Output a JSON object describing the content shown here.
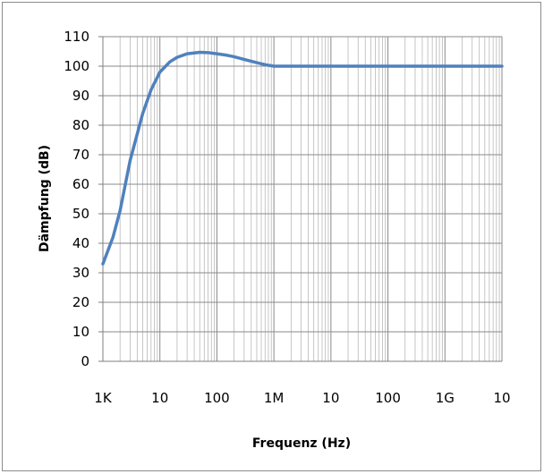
{
  "chart_data": {
    "type": "line",
    "title": "",
    "xlabel": "Frequenz (Hz)",
    "ylabel": "Dämpfung (dB)",
    "x_scale": "log",
    "xlim": [
      1000,
      10000000000
    ],
    "ylim": [
      0,
      110
    ],
    "y_ticks": [
      0,
      10,
      20,
      30,
      40,
      50,
      60,
      70,
      80,
      90,
      100,
      110
    ],
    "x_tick_labels": [
      {
        "value": 1000,
        "label": "1K"
      },
      {
        "value": 10000,
        "label": "10"
      },
      {
        "value": 100000,
        "label": "100"
      },
      {
        "value": 1000000,
        "label": "1M"
      },
      {
        "value": 10000000,
        "label": "10"
      },
      {
        "value": 100000000,
        "label": "100"
      },
      {
        "value": 1000000000,
        "label": "1G"
      },
      {
        "value": 10000000000,
        "label": "10"
      }
    ],
    "grid": true,
    "legend": "none",
    "series": [
      {
        "color": "#4f81bd",
        "x": [
          1000,
          1500,
          2000,
          3000,
          5000,
          7000,
          10000,
          15000,
          20000,
          30000,
          50000,
          70000,
          100000,
          150000,
          200000,
          300000,
          500000,
          700000,
          1000000,
          2000000,
          10000000,
          100000000,
          1000000000,
          10000000000
        ],
        "y": [
          33,
          42,
          51,
          68,
          84,
          92,
          98,
          101.5,
          103,
          104.2,
          104.7,
          104.6,
          104.2,
          103.7,
          103.2,
          102.3,
          101.2,
          100.5,
          100,
          100,
          100,
          100,
          100,
          100
        ]
      }
    ]
  }
}
